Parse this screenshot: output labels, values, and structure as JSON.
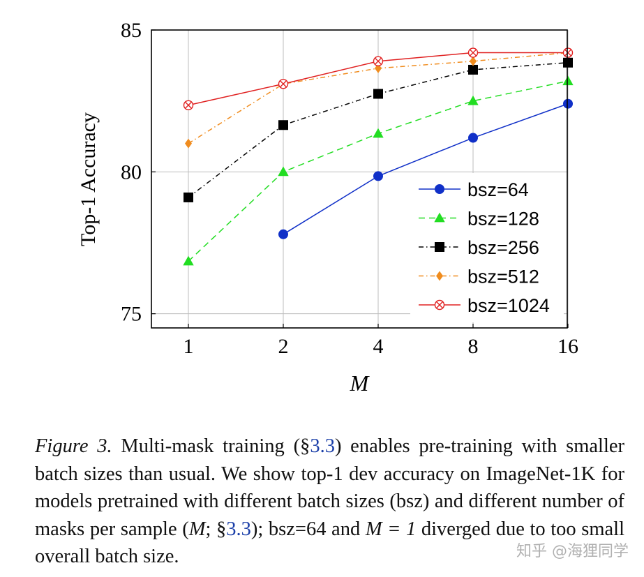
{
  "chart_data": {
    "type": "line",
    "title": "",
    "xlabel": "M",
    "ylabel": "Top-1 Accuracy",
    "categories": [
      "1",
      "2",
      "4",
      "8",
      "16"
    ],
    "ylim": [
      74.5,
      85
    ],
    "yticks": [
      75,
      80,
      85
    ],
    "grid": true,
    "legend_position": "bottom-right",
    "series": [
      {
        "name": "bsz=64",
        "color": "#1030c8",
        "dash": "solid",
        "marker": "circle",
        "values": [
          null,
          77.8,
          79.85,
          81.2,
          82.4
        ]
      },
      {
        "name": "bsz=128",
        "color": "#22dd22",
        "dash": "dashed",
        "marker": "triangle",
        "values": [
          76.85,
          80.0,
          81.35,
          82.5,
          83.2
        ]
      },
      {
        "name": "bsz=256",
        "color": "#000000",
        "dash": "dashdot",
        "marker": "square",
        "values": [
          79.1,
          81.65,
          82.75,
          83.6,
          83.85
        ]
      },
      {
        "name": "bsz=512",
        "color": "#f08c1e",
        "dash": "dashdot",
        "marker": "diamond",
        "values": [
          81.0,
          83.1,
          83.65,
          83.9,
          84.2
        ]
      },
      {
        "name": "bsz=1024",
        "color": "#e02020",
        "dash": "solid",
        "marker": "otimes",
        "values": [
          82.35,
          83.1,
          83.9,
          84.2,
          84.2
        ]
      }
    ]
  },
  "caption": {
    "label": "Figure 3.",
    "part1": " Multi-mask training (§",
    "ref1": "3.3",
    "part2": ") enables pre-training with smaller batch sizes than usual. We show top-1 dev accuracy on ImageNet-1K for models pretrained with different batch sizes (bsz) and different number of masks per sample (",
    "math1": "M",
    "part3": "; §",
    "ref2": "3.3",
    "part4": "); bsz=64 and ",
    "math2": "M = 1",
    "part5": " diverged due to too small overall batch size."
  },
  "watermark": "知乎 @海狸同学"
}
